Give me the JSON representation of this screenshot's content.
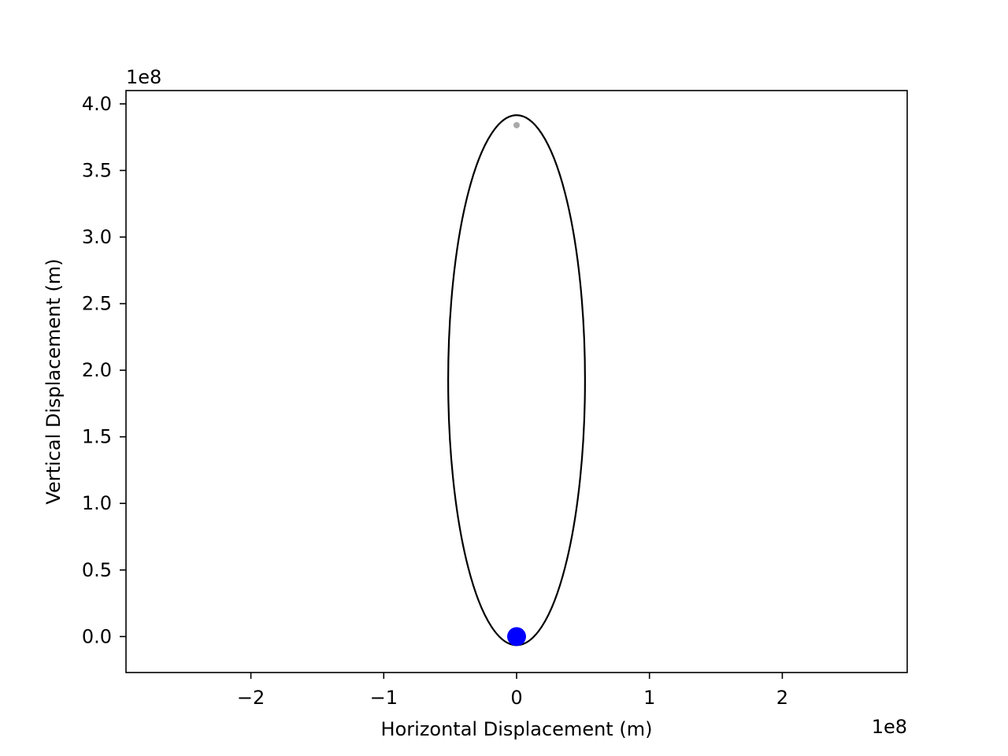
{
  "chart_data": {
    "type": "scatter",
    "title": "",
    "xlabel": "Horizontal Displacement (m)",
    "ylabel": "Vertical Displacement (m)",
    "x_offset_text": "1e8",
    "y_offset_text": "1e8",
    "xlim": [
      -294000000.0,
      294000000.0
    ],
    "ylim": [
      -27000000.0,
      410000000.0
    ],
    "x_ticks": [
      {
        "value": -200000000.0,
        "label": "−2"
      },
      {
        "value": -100000000.0,
        "label": "−1"
      },
      {
        "value": 0,
        "label": "0"
      },
      {
        "value": 100000000.0,
        "label": "1"
      },
      {
        "value": 200000000.0,
        "label": "2"
      }
    ],
    "y_ticks": [
      {
        "value": 0,
        "label": "0.0"
      },
      {
        "value": 50000000.0,
        "label": "0.5"
      },
      {
        "value": 100000000.0,
        "label": "1.0"
      },
      {
        "value": 150000000.0,
        "label": "1.5"
      },
      {
        "value": 200000000.0,
        "label": "2.0"
      },
      {
        "value": 250000000.0,
        "label": "2.5"
      },
      {
        "value": 300000000.0,
        "label": "3.0"
      },
      {
        "value": 350000000.0,
        "label": "3.5"
      },
      {
        "value": 400000000.0,
        "label": "4.0"
      }
    ],
    "grid": false,
    "orbit": {
      "center_x": 0,
      "center_y": 192500000.0,
      "semi_axis_x": 51500000.0,
      "semi_axis_y": 199000000.0,
      "color": "#000000"
    },
    "points": [
      {
        "name": "earth",
        "x": 0,
        "y": 0,
        "color": "#0000ff"
      },
      {
        "name": "moon",
        "x": 0,
        "y": 384000000.0,
        "color": "#aaaaaa"
      }
    ]
  }
}
